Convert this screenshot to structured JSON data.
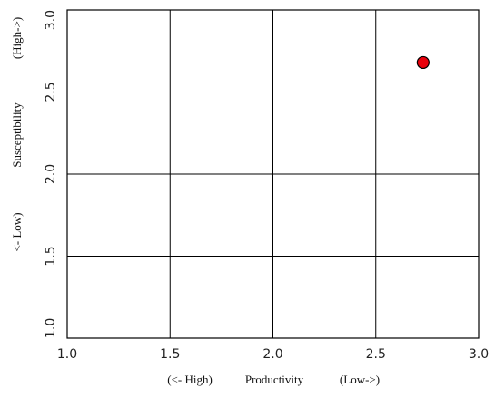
{
  "chart_data": {
    "type": "scatter",
    "xlim": [
      1.0,
      3.0
    ],
    "ylim": [
      1.0,
      3.0
    ],
    "x_ticks": [
      1.0,
      1.5,
      2.0,
      2.5,
      3.0
    ],
    "y_ticks": [
      1.0,
      1.5,
      2.0,
      2.5,
      3.0
    ],
    "x_tick_labels": [
      "1.0",
      "1.5",
      "2.0",
      "2.5",
      "3.0"
    ],
    "y_tick_labels": [
      "1.0",
      "1.5",
      "2.0",
      "2.5",
      "3.0"
    ],
    "grid": true,
    "xlabel": {
      "left": "(<- High)",
      "center": "Productivity",
      "right": "(Low->)"
    },
    "ylabel": {
      "bottom": "<- Low)",
      "center": "Susceptibility",
      "top": "(High->)"
    },
    "points": [
      {
        "x": 2.73,
        "y": 2.68,
        "color": "#e8000b"
      }
    ]
  }
}
